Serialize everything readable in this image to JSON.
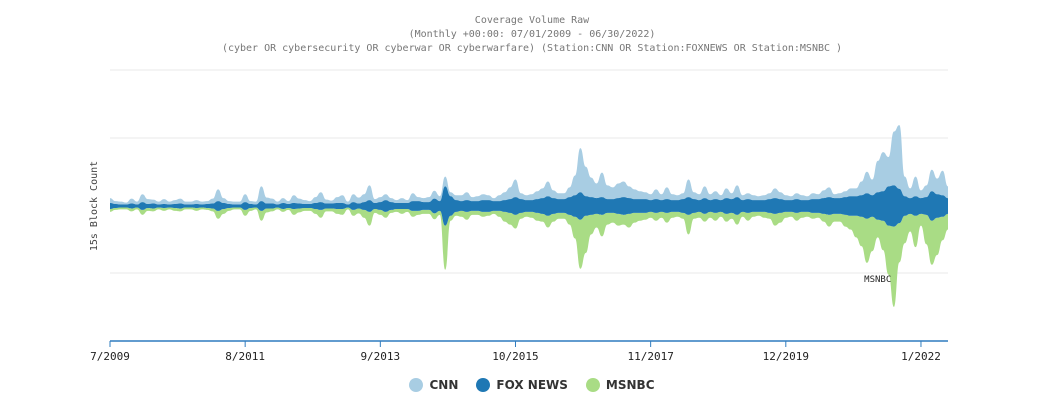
{
  "chart_data": {
    "type": "area",
    "title": "Coverage Volume Raw",
    "subtitle_lines": [
      "(Monthly +00:00: 07/01/2009 - 06/30/2022)",
      "(cyber OR cybersecurity OR cyberwar OR cyberwarfare) (Station:CNN OR Station:FOXNEWS OR Station:MSNBC )"
    ],
    "ylabel": "15s Block Count",
    "stacking": "streamgraph",
    "xlim": [
      "2009-07",
      "2022-06"
    ],
    "x_ticks": [
      "7/2009",
      "8/2011",
      "9/2013",
      "10/2015",
      "11/2017",
      "12/2019",
      "1/2022"
    ],
    "legend_position": "bottom",
    "grid": true,
    "x": [
      "2009-07",
      "2009-08",
      "2009-09",
      "2009-10",
      "2009-11",
      "2009-12",
      "2010-01",
      "2010-02",
      "2010-03",
      "2010-04",
      "2010-05",
      "2010-06",
      "2010-07",
      "2010-08",
      "2010-09",
      "2010-10",
      "2010-11",
      "2010-12",
      "2011-01",
      "2011-02",
      "2011-03",
      "2011-04",
      "2011-05",
      "2011-06",
      "2011-07",
      "2011-08",
      "2011-09",
      "2011-10",
      "2011-11",
      "2011-12",
      "2012-01",
      "2012-02",
      "2012-03",
      "2012-04",
      "2012-05",
      "2012-06",
      "2012-07",
      "2012-08",
      "2012-09",
      "2012-10",
      "2012-11",
      "2012-12",
      "2013-01",
      "2013-02",
      "2013-03",
      "2013-04",
      "2013-05",
      "2013-06",
      "2013-07",
      "2013-08",
      "2013-09",
      "2013-10",
      "2013-11",
      "2013-12",
      "2014-01",
      "2014-02",
      "2014-03",
      "2014-04",
      "2014-05",
      "2014-06",
      "2014-07",
      "2014-08",
      "2014-09",
      "2014-10",
      "2014-11",
      "2014-12",
      "2015-01",
      "2015-02",
      "2015-03",
      "2015-04",
      "2015-05",
      "2015-06",
      "2015-07",
      "2015-08",
      "2015-09",
      "2015-10",
      "2015-11",
      "2015-12",
      "2016-01",
      "2016-02",
      "2016-03",
      "2016-04",
      "2016-05",
      "2016-06",
      "2016-07",
      "2016-08",
      "2016-09",
      "2016-10",
      "2016-11",
      "2016-12",
      "2017-01",
      "2017-02",
      "2017-03",
      "2017-04",
      "2017-05",
      "2017-06",
      "2017-07",
      "2017-08",
      "2017-09",
      "2017-10",
      "2017-11",
      "2017-12",
      "2018-01",
      "2018-02",
      "2018-03",
      "2018-04",
      "2018-05",
      "2018-06",
      "2018-07",
      "2018-08",
      "2018-09",
      "2018-10",
      "2018-11",
      "2018-12",
      "2019-01",
      "2019-02",
      "2019-03",
      "2019-04",
      "2019-05",
      "2019-06",
      "2019-07",
      "2019-08",
      "2019-09",
      "2019-10",
      "2019-11",
      "2019-12",
      "2020-01",
      "2020-02",
      "2020-03",
      "2020-04",
      "2020-05",
      "2020-06",
      "2020-07",
      "2020-08",
      "2020-09",
      "2020-10",
      "2020-11",
      "2020-12",
      "2021-01",
      "2021-02",
      "2021-03",
      "2021-04",
      "2021-05",
      "2021-06",
      "2021-07",
      "2021-08",
      "2021-09",
      "2021-10",
      "2021-11",
      "2021-12",
      "2022-01",
      "2022-02",
      "2022-03",
      "2022-04",
      "2022-05",
      "2022-06"
    ],
    "series": [
      {
        "name": "CNN",
        "color": "#a8cde3",
        "values": [
          5,
          3,
          3,
          2,
          5,
          3,
          8,
          5,
          4,
          3,
          5,
          3,
          4,
          5,
          3,
          3,
          4,
          3,
          3,
          5,
          12,
          5,
          3,
          3,
          3,
          8,
          3,
          3,
          15,
          6,
          5,
          3,
          5,
          3,
          8,
          5,
          4,
          3,
          6,
          10,
          4,
          3,
          6,
          8,
          3,
          8,
          6,
          8,
          15,
          4,
          5,
          6,
          4,
          3,
          5,
          3,
          8,
          4,
          4,
          5,
          8,
          5,
          10,
          4,
          5,
          6,
          8,
          4,
          5,
          6,
          5,
          3,
          6,
          8,
          12,
          18,
          6,
          5,
          6,
          8,
          10,
          15,
          8,
          6,
          6,
          10,
          20,
          45,
          30,
          20,
          15,
          25,
          14,
          12,
          15,
          16,
          12,
          10,
          8,
          7,
          6,
          10,
          6,
          12,
          6,
          5,
          6,
          18,
          7,
          6,
          12,
          6,
          8,
          5,
          10,
          6,
          12,
          5,
          6,
          5,
          4,
          5,
          6,
          10,
          7,
          5,
          4,
          6,
          5,
          4,
          6,
          5,
          8,
          10,
          4,
          5,
          6,
          8,
          8,
          14,
          22,
          16,
          32,
          40,
          30,
          55,
          65,
          20,
          10,
          20,
          8,
          12,
          22,
          16,
          25,
          12
        ]
      },
      {
        "name": "FOX NEWS",
        "color": "#1f78b4",
        "values": [
          6,
          4,
          3,
          3,
          5,
          3,
          8,
          4,
          5,
          3,
          4,
          3,
          4,
          5,
          3,
          3,
          4,
          3,
          4,
          5,
          10,
          6,
          4,
          3,
          3,
          8,
          4,
          3,
          10,
          5,
          5,
          3,
          6,
          4,
          6,
          5,
          4,
          4,
          6,
          8,
          5,
          5,
          6,
          6,
          3,
          8,
          5,
          8,
          12,
          6,
          8,
          12,
          8,
          6,
          6,
          6,
          10,
          10,
          8,
          8,
          15,
          10,
          40,
          20,
          12,
          10,
          12,
          10,
          10,
          12,
          12,
          10,
          10,
          12,
          14,
          18,
          14,
          12,
          12,
          14,
          16,
          20,
          16,
          14,
          14,
          18,
          22,
          28,
          20,
          18,
          16,
          18,
          14,
          14,
          16,
          18,
          16,
          14,
          14,
          14,
          12,
          14,
          12,
          14,
          12,
          12,
          14,
          18,
          14,
          12,
          16,
          12,
          14,
          12,
          16,
          14,
          18,
          12,
          14,
          12,
          12,
          12,
          14,
          16,
          14,
          12,
          12,
          14,
          12,
          12,
          14,
          14,
          16,
          18,
          16,
          16,
          18,
          20,
          20,
          22,
          26,
          22,
          28,
          30,
          40,
          42,
          35,
          20,
          16,
          20,
          16,
          18,
          30,
          24,
          22,
          16
        ]
      },
      {
        "name": "MSNBC",
        "color": "#a9dc85",
        "values": [
          3,
          2,
          2,
          2,
          3,
          2,
          5,
          3,
          3,
          2,
          3,
          2,
          3,
          3,
          2,
          2,
          3,
          2,
          2,
          3,
          8,
          5,
          3,
          2,
          2,
          6,
          3,
          2,
          10,
          4,
          3,
          2,
          3,
          2,
          6,
          4,
          3,
          3,
          5,
          8,
          3,
          3,
          5,
          6,
          2,
          6,
          5,
          8,
          14,
          4,
          5,
          6,
          3,
          3,
          5,
          3,
          6,
          4,
          4,
          4,
          6,
          4,
          45,
          5,
          4,
          6,
          8,
          4,
          4,
          5,
          4,
          3,
          6,
          10,
          12,
          14,
          6,
          5,
          6,
          8,
          8,
          12,
          8,
          6,
          6,
          10,
          22,
          50,
          38,
          20,
          14,
          22,
          12,
          10,
          12,
          10,
          14,
          10,
          8,
          7,
          6,
          8,
          6,
          10,
          6,
          5,
          6,
          20,
          6,
          6,
          8,
          6,
          8,
          5,
          8,
          6,
          10,
          5,
          8,
          5,
          4,
          6,
          6,
          12,
          10,
          6,
          5,
          8,
          6,
          5,
          6,
          5,
          8,
          12,
          8,
          8,
          12,
          14,
          22,
          30,
          45,
          35,
          18,
          30,
          50,
          82,
          40,
          28,
          18,
          32,
          12,
          30,
          45,
          38,
          24,
          16
        ]
      }
    ],
    "annotations": [
      {
        "label": "MSNBC",
        "x": "2021-05"
      }
    ]
  }
}
